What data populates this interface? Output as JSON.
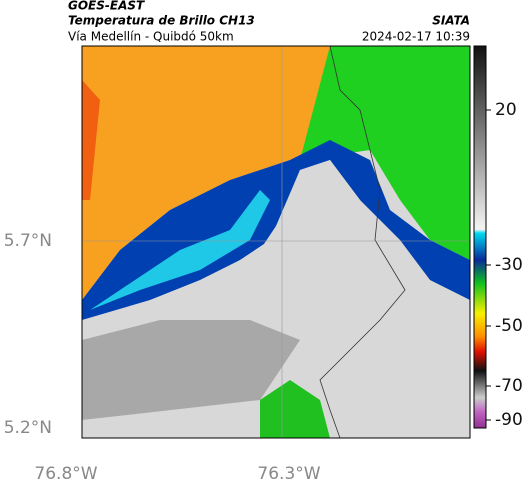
{
  "header": {
    "title": "GOES-EAST",
    "subtitle": "Temperatura de Brillo CH13",
    "route": "Vía Medellín - Quibdó 50km",
    "source": "SIATA",
    "timestamp": "2024-02-17 10:39"
  },
  "map": {
    "lat_labels": [
      "5.7°N",
      "5.2°N"
    ],
    "lon_labels": [
      "76.8°W",
      "76.3°W"
    ]
  },
  "colorbar": {
    "ticks": [
      20,
      -30,
      -50,
      -70,
      -90
    ]
  }
}
